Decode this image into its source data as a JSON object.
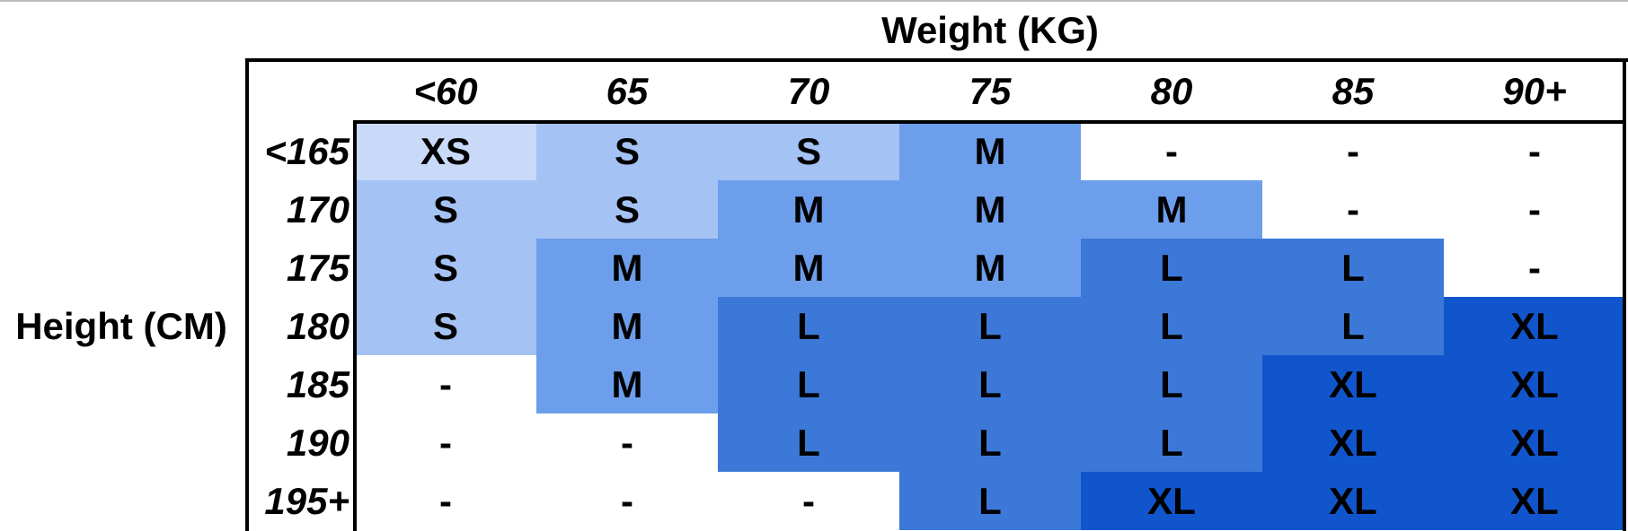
{
  "header": {
    "title": "Weight (KG)"
  },
  "row_axis_label": "Height (CM)",
  "table": {
    "columns": [
      "<60",
      "65",
      "70",
      "75",
      "80",
      "85",
      "90+"
    ],
    "rows": [
      {
        "label": "<165",
        "cells": [
          "XS",
          "S",
          "S",
          "M",
          "-",
          "-",
          "-"
        ]
      },
      {
        "label": "170",
        "cells": [
          "S",
          "S",
          "M",
          "M",
          "M",
          "-",
          "-"
        ]
      },
      {
        "label": "175",
        "cells": [
          "S",
          "M",
          "M",
          "M",
          "L",
          "L",
          "-"
        ]
      },
      {
        "label": "180",
        "cells": [
          "S",
          "M",
          "L",
          "L",
          "L",
          "L",
          "XL"
        ]
      },
      {
        "label": "185",
        "cells": [
          "-",
          "M",
          "L",
          "L",
          "L",
          "XL",
          "XL"
        ]
      },
      {
        "label": "190",
        "cells": [
          "-",
          "-",
          "L",
          "L",
          "L",
          "XL",
          "XL"
        ]
      },
      {
        "label": "195+",
        "cells": [
          "-",
          "-",
          "-",
          "L",
          "XL",
          "XL",
          "XL"
        ]
      }
    ]
  },
  "size_colors": {
    "XS": "#c9daf8",
    "S": "#a4c2f4",
    "M": "#6d9eeb",
    "L": "#3c78d8",
    "XL": "#1155cc",
    "-": "#ffffff"
  }
}
